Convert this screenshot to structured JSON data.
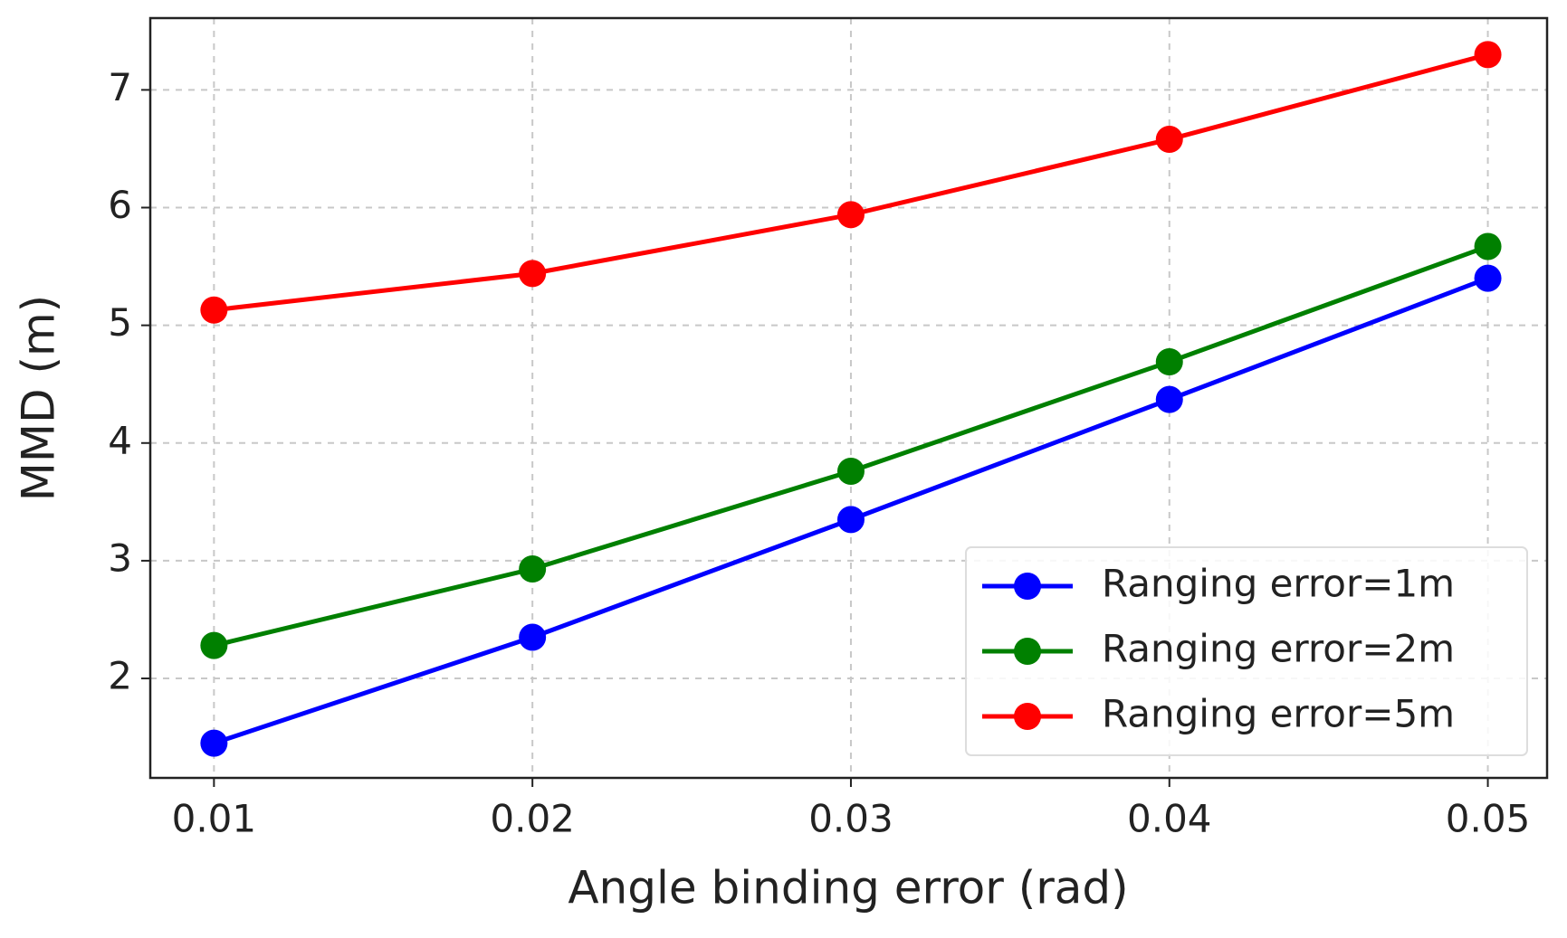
{
  "chart_data": {
    "type": "line",
    "x_label": "Angle binding error (rad)",
    "y_label": "MMD (m)",
    "x": [
      0.01,
      0.02,
      0.03,
      0.04,
      0.05
    ],
    "series": [
      {
        "name": "Ranging error=1m",
        "color": "#0000ff",
        "values": [
          1.45,
          2.35,
          3.35,
          4.37,
          5.4
        ]
      },
      {
        "name": "Ranging error=2m",
        "color": "#008000",
        "values": [
          2.28,
          2.93,
          3.76,
          4.69,
          5.67
        ]
      },
      {
        "name": "Ranging error=5m",
        "color": "#ff0000",
        "values": [
          5.13,
          5.44,
          5.94,
          6.58,
          7.3
        ]
      }
    ],
    "xlim": [
      0.008,
      0.05186
    ],
    "xticks": [
      0.01,
      0.02,
      0.03,
      0.04,
      0.05
    ],
    "ylim": [
      1.155,
      7.61
    ],
    "yticks": [
      2,
      3,
      4,
      5,
      6,
      7
    ],
    "grid": true,
    "legend": "lower right"
  }
}
